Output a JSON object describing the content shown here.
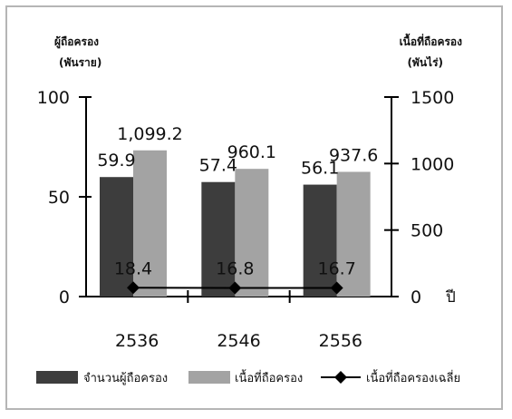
{
  "chart_data": {
    "type": "bar",
    "categories": [
      "2536",
      "2546",
      "2556"
    ],
    "left_axis": {
      "title_line1": "ผู้ถือครอง",
      "title_line2": "(พันราย)",
      "ylim": [
        0,
        100
      ],
      "ticks": [
        "0",
        "50",
        "100"
      ]
    },
    "right_axis": {
      "title_line1": "เนื้อที่ถือครอง",
      "title_line2": "(พันไร่)",
      "ylim": [
        0,
        1500
      ],
      "ticks": [
        "0",
        "500",
        "1000",
        "1500"
      ]
    },
    "x_unit": "ปี",
    "series": [
      {
        "name": "จำนวนผู้ถือครอง",
        "type": "bar",
        "axis": "left",
        "color": "#3d3d3d",
        "values": [
          59.9,
          57.4,
          56.1
        ],
        "labels": [
          "59.9",
          "57.4",
          "56.1"
        ]
      },
      {
        "name": "เนื้อที่ถือครอง",
        "type": "bar",
        "axis": "right",
        "color": "#a3a3a3",
        "values": [
          1099.2,
          960.1,
          937.6
        ],
        "labels": [
          "1,099.2",
          "960.1",
          "937.6"
        ]
      },
      {
        "name": "เนื้อที่ถือครองเฉลี่ย",
        "type": "line",
        "axis": "right",
        "color": "#000000",
        "values": [
          18.4,
          16.8,
          16.7
        ],
        "labels": [
          "18.4",
          "16.8",
          "16.7"
        ]
      }
    ],
    "legend_position": "bottom",
    "grid": false
  }
}
